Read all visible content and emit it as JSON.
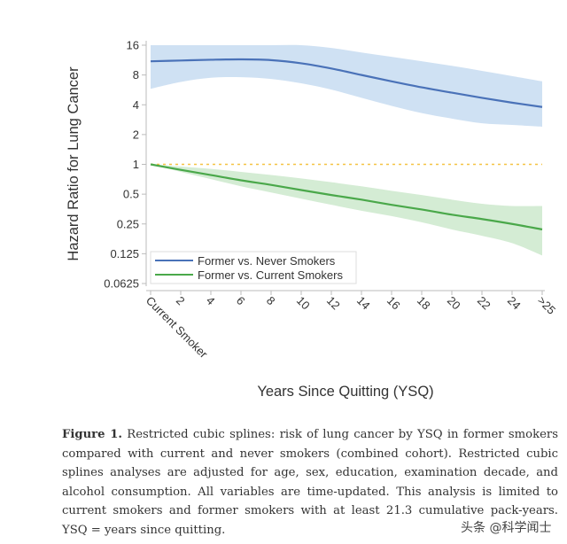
{
  "chart_data": {
    "type": "line",
    "title": "",
    "xlabel": "Years Since Quitting (YSQ)",
    "ylabel": "Hazard Ratio for Lung Cancer",
    "yscale": "log2",
    "ylim": [
      0.0625,
      16
    ],
    "yticks": [
      16,
      8,
      4,
      2,
      1,
      0.5,
      0.25,
      0.125,
      0.0625
    ],
    "ytick_labels": [
      "16",
      "8",
      "4",
      "2",
      "1",
      "0.5",
      "0.25",
      "0.125",
      "0.0625"
    ],
    "x_ticks": [
      0,
      2,
      4,
      6,
      8,
      10,
      12,
      14,
      16,
      18,
      20,
      22,
      24,
      26
    ],
    "x_tick_labels": [
      "Current Smoker",
      "2",
      "4",
      "6",
      "8",
      "10",
      "12",
      "14",
      "16",
      "18",
      "20",
      "22",
      "24",
      ">25"
    ],
    "xlim": [
      0,
      26
    ],
    "reference_line": {
      "y": 1,
      "color": "#f5c242",
      "style": "dotted"
    },
    "legend": {
      "position": "bottom-left",
      "entries": [
        "Former vs. Never Smokers",
        "Former vs. Current Smokers"
      ]
    },
    "series": [
      {
        "name": "Former vs. Never Smokers",
        "color": "#4a72b8",
        "band_color": "#cfe1f3",
        "x": [
          0,
          2,
          4,
          6,
          8,
          10,
          12,
          14,
          16,
          18,
          20,
          22,
          24,
          26
        ],
        "values": [
          11,
          11.2,
          11.4,
          11.5,
          11.3,
          10.5,
          9.3,
          8.0,
          6.9,
          6.0,
          5.3,
          4.7,
          4.2,
          3.8
        ],
        "lower": [
          5.8,
          6.8,
          7.5,
          7.6,
          7.3,
          6.6,
          5.7,
          4.7,
          3.9,
          3.3,
          2.9,
          2.6,
          2.5,
          2.4
        ],
        "upper": [
          16,
          16,
          16,
          16,
          16,
          16,
          15.0,
          13.5,
          12.2,
          11.0,
          9.9,
          8.8,
          7.8,
          6.9
        ]
      },
      {
        "name": "Former vs. Current Smokers",
        "color": "#4aa84a",
        "band_color": "#d4ecd4",
        "x": [
          0,
          2,
          4,
          6,
          8,
          10,
          12,
          14,
          16,
          18,
          20,
          22,
          24,
          26
        ],
        "values": [
          1,
          0.88,
          0.78,
          0.69,
          0.62,
          0.55,
          0.49,
          0.44,
          0.39,
          0.35,
          0.31,
          0.28,
          0.25,
          0.22
        ],
        "lower": [
          1,
          0.84,
          0.71,
          0.6,
          0.52,
          0.45,
          0.39,
          0.34,
          0.3,
          0.26,
          0.22,
          0.19,
          0.16,
          0.12
        ],
        "upper": [
          1,
          0.95,
          0.9,
          0.84,
          0.78,
          0.72,
          0.66,
          0.6,
          0.54,
          0.49,
          0.44,
          0.4,
          0.38,
          0.38
        ]
      }
    ]
  },
  "caption": {
    "label": "Figure 1.",
    "text": " Restricted cubic splines: risk of lung cancer by YSQ in former smokers compared with current and never smokers (combined cohort). Restricted cubic splines analyses are adjusted for age, sex, education, examination decade, and alcohol consumption. All variables are time-updated. This analysis is limited to current smokers and former smokers with at least 21.3 cumulative pack-years. YSQ = years since quitting."
  },
  "watermark": "头条 @科学闻士"
}
